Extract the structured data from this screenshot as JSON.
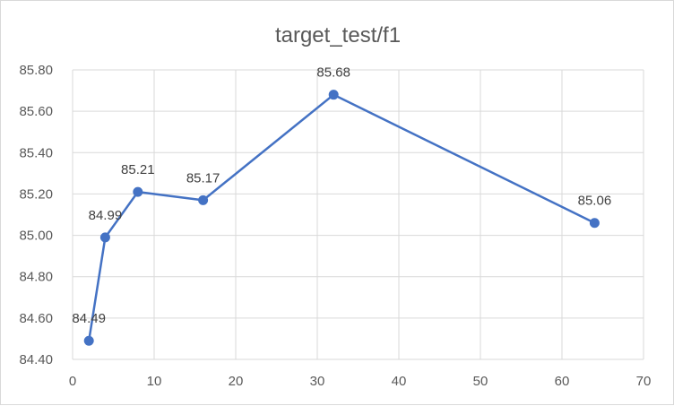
{
  "chart_data": {
    "type": "line",
    "title": "target_test/f1",
    "xlabel": "",
    "ylabel": "",
    "xlim": [
      0,
      70
    ],
    "ylim": [
      84.4,
      85.8
    ],
    "x_ticks": [
      0,
      10,
      20,
      30,
      40,
      50,
      60,
      70
    ],
    "y_ticks": [
      "84.40",
      "84.60",
      "84.80",
      "85.00",
      "85.20",
      "85.40",
      "85.60",
      "85.80"
    ],
    "grid": true,
    "legend": "none",
    "series": [
      {
        "x": [
          2,
          4,
          8,
          16,
          32,
          64
        ],
        "values": [
          84.49,
          84.99,
          85.21,
          85.17,
          85.68,
          85.06
        ],
        "labels": [
          "84.49",
          "84.99",
          "85.21",
          "85.17",
          "85.68",
          "85.06"
        ],
        "color": "#4472c4"
      }
    ]
  }
}
